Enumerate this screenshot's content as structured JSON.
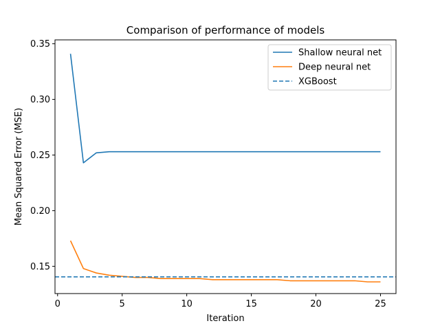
{
  "chart_data": {
    "type": "line",
    "title": "Comparison of performance of models",
    "xlabel": "Iteration",
    "ylabel": "Mean Squared Error (MSE)",
    "xlim": [
      -0.2,
      26.2
    ],
    "ylim": [
      0.1255,
      0.3535
    ],
    "x_ticks": [
      0,
      5,
      10,
      15,
      20,
      25
    ],
    "y_ticks": [
      0.15,
      0.2,
      0.25,
      0.3,
      0.35
    ],
    "y_tick_labels": [
      "0.15",
      "0.20",
      "0.25",
      "0.30",
      "0.35"
    ],
    "grid": false,
    "legend_position": "top-right",
    "x": [
      1,
      2,
      3,
      4,
      5,
      6,
      7,
      8,
      9,
      10,
      11,
      12,
      13,
      14,
      15,
      16,
      17,
      18,
      19,
      20,
      21,
      22,
      23,
      24,
      25
    ],
    "series": [
      {
        "name": "Shallow neural net",
        "color": "#1f77b4",
        "style": "solid",
        "values": [
          0.341,
          0.243,
          0.252,
          0.253,
          0.253,
          0.253,
          0.253,
          0.253,
          0.253,
          0.253,
          0.253,
          0.253,
          0.253,
          0.253,
          0.253,
          0.253,
          0.253,
          0.253,
          0.253,
          0.253,
          0.253,
          0.253,
          0.253,
          0.253,
          0.253
        ]
      },
      {
        "name": "Deep neural net",
        "color": "#ff7f0e",
        "style": "solid",
        "values": [
          0.173,
          0.148,
          0.144,
          0.142,
          0.141,
          0.14,
          0.14,
          0.139,
          0.139,
          0.139,
          0.139,
          0.138,
          0.138,
          0.138,
          0.138,
          0.138,
          0.138,
          0.137,
          0.137,
          0.137,
          0.137,
          0.137,
          0.137,
          0.136,
          0.136
        ]
      },
      {
        "name": "XGBoost",
        "color": "#1f77b4",
        "style": "dashed",
        "hline": 0.1405
      }
    ]
  }
}
